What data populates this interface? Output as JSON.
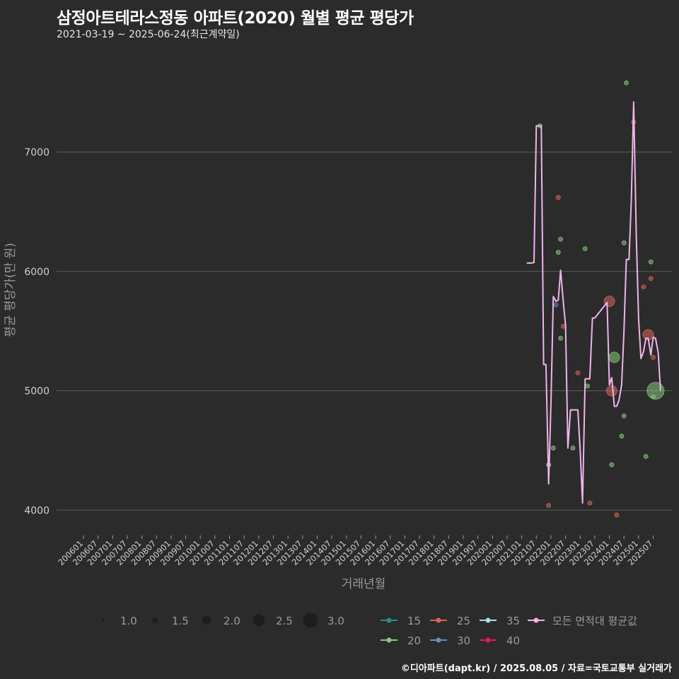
{
  "header": {
    "title": "삼정아트테라스정동 아파트(2020) 월별 평균 평당가",
    "subtitle": "2021-03-19 ~ 2025-06-24(최근계약일)"
  },
  "footer": {
    "caption": "©디아파트(dapt.kr) / 2025.08.05 / 자료=국토교통부 실거래가"
  },
  "colors": {
    "background": "#2b2b2b",
    "grid": "#5e5e5e",
    "avg_line": "#f0b4ea",
    "area_15": "#2f8c8c",
    "area_20": "#86c97f",
    "area_25": "#d9645c",
    "area_30": "#5f8fc4",
    "area_35": "#a8dde6",
    "area_40": "#e0166a"
  },
  "chart_data": {
    "type": "scatter+line",
    "title": "삼정아트테라스정동 아파트(2020) 월별 평균 평당가",
    "xlabel": "거래년월",
    "ylabel": "평균 평당가(만 원)",
    "ylim": [
      3800,
      7800
    ],
    "yticks": [
      4000,
      5000,
      6000,
      7000
    ],
    "x_range": [
      2006.0,
      2025.7
    ],
    "x_tick_labels": [
      "200601",
      "200607",
      "200701",
      "200707",
      "200801",
      "200807",
      "200901",
      "200907",
      "201001",
      "201007",
      "201101",
      "201107",
      "201201",
      "201207",
      "201301",
      "201307",
      "201401",
      "201407",
      "201501",
      "201507",
      "201601",
      "201607",
      "201701",
      "201707",
      "201801",
      "201807",
      "201901",
      "201907",
      "202001",
      "202007",
      "202101",
      "202107",
      "202201",
      "202207",
      "202301",
      "202307",
      "202401",
      "202407",
      "202501",
      "202507"
    ],
    "average_line": {
      "name": "모든 면적대 평균값",
      "points": [
        [
          2021.17,
          6070
        ],
        [
          2021.25,
          6070
        ],
        [
          2021.33,
          6070
        ],
        [
          2021.42,
          6075
        ],
        [
          2021.5,
          7220
        ],
        [
          2021.58,
          7220
        ],
        [
          2021.67,
          7220
        ],
        [
          2021.75,
          5220
        ],
        [
          2021.83,
          5220
        ],
        [
          2021.92,
          4220
        ],
        [
          2022.0,
          4900
        ],
        [
          2022.08,
          5790
        ],
        [
          2022.17,
          5750
        ],
        [
          2022.25,
          5760
        ],
        [
          2022.33,
          6010
        ],
        [
          2022.42,
          5750
        ],
        [
          2022.5,
          5550
        ],
        [
          2022.58,
          4520
        ],
        [
          2022.67,
          4840
        ],
        [
          2022.75,
          4840
        ],
        [
          2022.83,
          4840
        ],
        [
          2022.92,
          4840
        ],
        [
          2023.0,
          4500
        ],
        [
          2023.08,
          4060
        ],
        [
          2023.17,
          5100
        ],
        [
          2023.25,
          5100
        ],
        [
          2023.33,
          5100
        ],
        [
          2023.42,
          5610
        ],
        [
          2023.5,
          5610
        ],
        [
          2023.92,
          5740
        ],
        [
          2024.0,
          5050
        ],
        [
          2024.08,
          5110
        ],
        [
          2024.17,
          4870
        ],
        [
          2024.25,
          4870
        ],
        [
          2024.33,
          4920
        ],
        [
          2024.42,
          5050
        ],
        [
          2024.5,
          5500
        ],
        [
          2024.58,
          6100
        ],
        [
          2024.67,
          6100
        ],
        [
          2024.75,
          6600
        ],
        [
          2024.83,
          7420
        ],
        [
          2024.92,
          6300
        ],
        [
          2025.0,
          5600
        ],
        [
          2025.08,
          5270
        ],
        [
          2025.17,
          5330
        ],
        [
          2025.25,
          5440
        ],
        [
          2025.33,
          5440
        ],
        [
          2025.42,
          5300
        ],
        [
          2025.5,
          5450
        ],
        [
          2025.58,
          5440
        ],
        [
          2025.67,
          5320
        ],
        [
          2025.75,
          5000
        ]
      ]
    },
    "series": [
      {
        "name": "15",
        "color": "#2f8c8c",
        "points": []
      },
      {
        "name": "20",
        "color": "#86c97f",
        "points": [
          {
            "x": 2021.62,
            "y": 7220,
            "n": 1
          },
          {
            "x": 2022.25,
            "y": 6160,
            "n": 1
          },
          {
            "x": 2022.33,
            "y": 6270,
            "n": 1
          },
          {
            "x": 2022.08,
            "y": 4520,
            "n": 1
          },
          {
            "x": 2022.33,
            "y": 5440,
            "n": 1
          },
          {
            "x": 2022.75,
            "y": 4520,
            "n": 1
          },
          {
            "x": 2023.17,
            "y": 6190,
            "n": 1
          },
          {
            "x": 2023.25,
            "y": 5040,
            "n": 1
          },
          {
            "x": 2024.08,
            "y": 4380,
            "n": 1
          },
          {
            "x": 2024.17,
            "y": 5280,
            "n": 2
          },
          {
            "x": 2024.42,
            "y": 4620,
            "n": 1
          },
          {
            "x": 2024.5,
            "y": 4790,
            "n": 1
          },
          {
            "x": 2024.5,
            "y": 6240,
            "n": 1
          },
          {
            "x": 2024.58,
            "y": 7580,
            "n": 1
          },
          {
            "x": 2025.25,
            "y": 4450,
            "n": 1
          },
          {
            "x": 2025.42,
            "y": 6080,
            "n": 1
          },
          {
            "x": 2025.58,
            "y": 5000,
            "n": 3
          },
          {
            "x": 2025.5,
            "y": 4950,
            "n": 1
          }
        ]
      },
      {
        "name": "25",
        "color": "#d9645c",
        "points": [
          {
            "x": 2022.25,
            "y": 6620,
            "n": 1
          },
          {
            "x": 2022.42,
            "y": 5540,
            "n": 1
          },
          {
            "x": 2021.92,
            "y": 4040,
            "n": 1
          },
          {
            "x": 2022.92,
            "y": 5150,
            "n": 1
          },
          {
            "x": 2023.33,
            "y": 4060,
            "n": 1
          },
          {
            "x": 2024.0,
            "y": 5750,
            "n": 2
          },
          {
            "x": 2024.08,
            "y": 5000,
            "n": 2
          },
          {
            "x": 2024.25,
            "y": 3960,
            "n": 1
          },
          {
            "x": 2024.83,
            "y": 7250,
            "n": 1
          },
          {
            "x": 2025.17,
            "y": 5870,
            "n": 1
          },
          {
            "x": 2025.33,
            "y": 5470,
            "n": 2
          },
          {
            "x": 2025.42,
            "y": 5940,
            "n": 1
          },
          {
            "x": 2025.5,
            "y": 5280,
            "n": 1
          }
        ]
      },
      {
        "name": "30",
        "color": "#5f8fc4",
        "points": [
          {
            "x": 2022.17,
            "y": 5720,
            "n": 1
          }
        ]
      },
      {
        "name": "35",
        "color": "#a8dde6",
        "points": [
          {
            "x": 2021.92,
            "y": 4380,
            "n": 1
          }
        ]
      },
      {
        "name": "40",
        "color": "#e0166a",
        "points": []
      }
    ],
    "size_legend": [
      1.0,
      1.5,
      2.0,
      2.5,
      3.0
    ],
    "size_legend_labels": [
      "1.0",
      "1.5",
      "2.0",
      "2.5",
      "3.0"
    ],
    "color_legend": [
      "15",
      "20",
      "25",
      "30",
      "35",
      "40"
    ],
    "average_legend_label": "모든 면적대 평균값"
  }
}
